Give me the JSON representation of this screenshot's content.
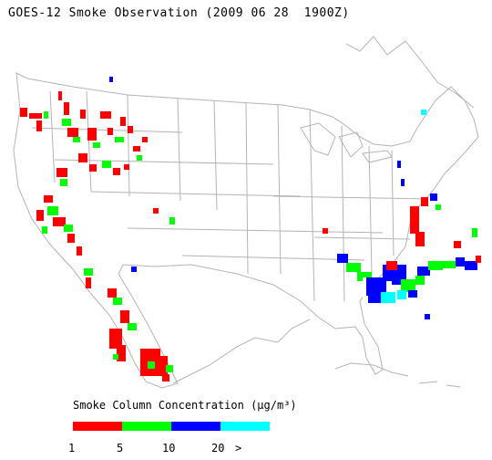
{
  "title": "GOES-12 Smoke Observation (2009 06 28  1900Z)",
  "legend": {
    "title": "Smoke Column Concentration (µg/m³)",
    "colors": [
      "#ff0000",
      "#00ff00",
      "#0000ff",
      "#00ffff"
    ],
    "tick_labels": [
      "1",
      "5",
      "10",
      "20",
      ">"
    ]
  },
  "map": {
    "region": "Continental United States",
    "boundary_color": "#c8c8c8",
    "coast_color": "#a0a0a0",
    "smoke_levels": [
      "1-5",
      "5-10",
      "10-20",
      "20+"
    ]
  }
}
